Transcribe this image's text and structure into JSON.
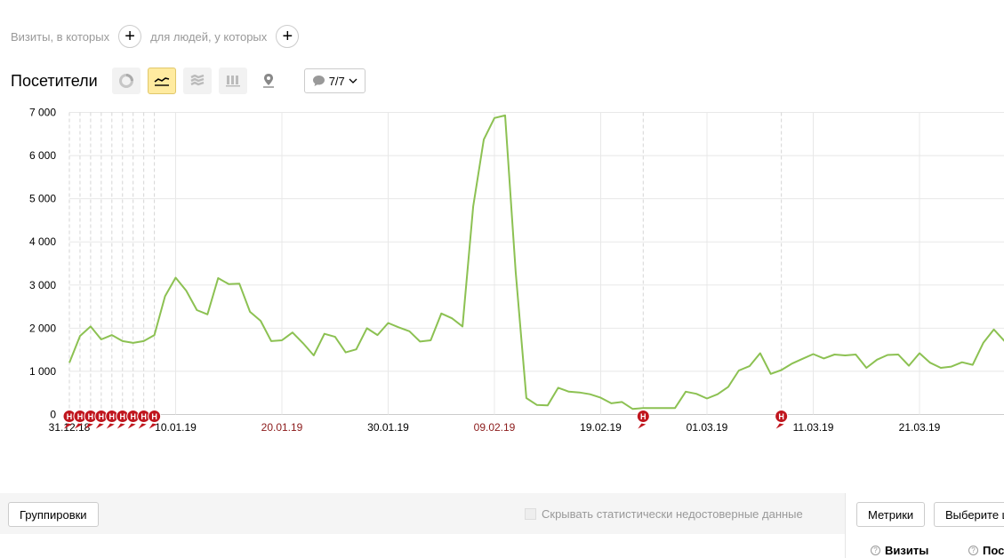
{
  "segments": {
    "visits_label": "Визиты, в которых",
    "people_label": "для людей, у которых",
    "plus_symbol": "+"
  },
  "toolbar": {
    "title": "Посетители",
    "chart_types": [
      "pie-chart-icon",
      "line-chart-icon",
      "area-chart-icon",
      "column-chart-icon",
      "map-pin-icon"
    ],
    "active_chart_type": "line-chart-icon",
    "annotations_count": "7/7"
  },
  "chart_data": {
    "type": "line",
    "ylabel": "",
    "ylim": [
      0,
      7000
    ],
    "yticks": [
      "0",
      "1 000",
      "2 000",
      "3 000",
      "4 000",
      "5 000",
      "6 000",
      "7 000"
    ],
    "xtick_labels": [
      {
        "label": "31.12.18",
        "index": 0,
        "holiday": false
      },
      {
        "label": "10.01.19",
        "index": 10,
        "holiday": false
      },
      {
        "label": "20.01.19",
        "index": 20,
        "holiday": true
      },
      {
        "label": "30.01.19",
        "index": 30,
        "holiday": false
      },
      {
        "label": "09.02.19",
        "index": 40,
        "holiday": true
      },
      {
        "label": "19.02.19",
        "index": 50,
        "holiday": false
      },
      {
        "label": "01.03.19",
        "index": 60,
        "holiday": false
      },
      {
        "label": "11.03.19",
        "index": 70,
        "holiday": false
      },
      {
        "label": "21.03.19",
        "index": 80,
        "holiday": false
      }
    ],
    "series": [
      {
        "color": "#8cc152",
        "values": [
          1200,
          1820,
          2040,
          1740,
          1840,
          1700,
          1660,
          1700,
          1840,
          2740,
          3170,
          2870,
          2420,
          2320,
          3160,
          3020,
          3030,
          2380,
          2170,
          1700,
          1720,
          1900,
          1650,
          1370,
          1870,
          1800,
          1440,
          1510,
          2000,
          1840,
          2120,
          2020,
          1930,
          1690,
          1720,
          2340,
          2230,
          2040,
          4820,
          6370,
          6870,
          6930,
          3300,
          380,
          220,
          210,
          620,
          530,
          510,
          470,
          390,
          260,
          290,
          130,
          150,
          150,
          150,
          150,
          530,
          480,
          370,
          470,
          640,
          1020,
          1120,
          1420,
          940,
          1030,
          1180,
          1290,
          1400,
          1300,
          1390,
          1370,
          1390,
          1080,
          1270,
          1380,
          1390,
          1130,
          1420,
          1200,
          1080,
          1110,
          1210,
          1150,
          1660,
          1970,
          1700
        ]
      }
    ],
    "annotation_marker": "Н",
    "annotation_indices": [
      0,
      1,
      2,
      3,
      4,
      5,
      6,
      7,
      8,
      54,
      67
    ]
  },
  "bottom": {
    "groupings_label": "Группировки",
    "hide_unreliable_label": "Скрывать статистически недостоверные данные",
    "metrics_label": "Метрики",
    "choose_label": "Выберите ц",
    "col_visits": "Визиты",
    "col_second": "Пос",
    "help_mark": "?"
  }
}
